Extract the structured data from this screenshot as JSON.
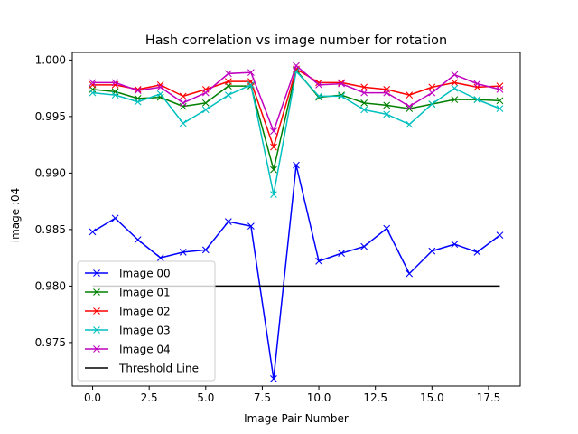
{
  "chart_data": {
    "type": "line",
    "title": "Hash correlation vs image number for rotation",
    "xlabel": "Image Pair Number",
    "ylabel": "image :04",
    "xlim": [
      -0.9,
      18.9
    ],
    "ylim": [
      0.97115,
      1.00067
    ],
    "xticks": [
      0.0,
      2.5,
      5.0,
      7.5,
      10.0,
      12.5,
      15.0,
      17.5
    ],
    "xtick_labels": [
      "0.0",
      "2.5",
      "5.0",
      "7.5",
      "10.0",
      "12.5",
      "15.0",
      "17.5"
    ],
    "yticks": [
      0.975,
      0.98,
      0.985,
      0.99,
      0.995,
      1.0
    ],
    "ytick_labels": [
      "0.975",
      "0.980",
      "0.985",
      "0.990",
      "0.995",
      "1.000"
    ],
    "grid": false,
    "legend_position": "lower-left",
    "x": [
      0,
      1,
      2,
      3,
      4,
      5,
      6,
      7,
      8,
      9,
      10,
      11,
      12,
      13,
      14,
      15,
      16,
      17,
      18
    ],
    "series": [
      {
        "name": "Image 00",
        "color": "#0000ff",
        "marker": "x",
        "values": [
          0.9848,
          0.986,
          0.9841,
          0.9825,
          0.983,
          0.9832,
          0.9857,
          0.9853,
          0.9718,
          0.9907,
          0.9822,
          0.9829,
          0.9835,
          0.9851,
          0.9811,
          0.9831,
          0.9837,
          0.983,
          0.9845
        ]
      },
      {
        "name": "Image 01",
        "color": "#008000",
        "marker": "x",
        "values": [
          0.9974,
          0.9972,
          0.9966,
          0.9967,
          0.9959,
          0.9962,
          0.9977,
          0.9977,
          0.9903,
          0.9991,
          0.9967,
          0.9969,
          0.9962,
          0.996,
          0.9957,
          0.9961,
          0.9965,
          0.9965,
          0.9964
        ]
      },
      {
        "name": "Image 02",
        "color": "#ff0000",
        "marker": "x",
        "values": [
          0.9978,
          0.9978,
          0.9974,
          0.9978,
          0.9968,
          0.9974,
          0.9981,
          0.9981,
          0.9923,
          0.9992,
          0.998,
          0.998,
          0.9976,
          0.9974,
          0.9969,
          0.9976,
          0.998,
          0.9976,
          0.9977
        ]
      },
      {
        "name": "Image 03",
        "color": "#00bfbf",
        "marker": "x",
        "values": [
          0.9971,
          0.9969,
          0.9963,
          0.997,
          0.9944,
          0.9956,
          0.9969,
          0.9978,
          0.9881,
          0.999,
          0.9968,
          0.9968,
          0.9956,
          0.9952,
          0.9943,
          0.9961,
          0.9975,
          0.9965,
          0.9957
        ]
      },
      {
        "name": "Image 04",
        "color": "#bf00bf",
        "marker": "x",
        "values": [
          0.998,
          0.998,
          0.9973,
          0.9976,
          0.9962,
          0.9971,
          0.9988,
          0.9989,
          0.9937,
          0.9995,
          0.9978,
          0.9979,
          0.9971,
          0.9971,
          0.9959,
          0.9971,
          0.9987,
          0.9979,
          0.9974
        ]
      },
      {
        "name": "Threshold Line",
        "color": "#000000",
        "marker": "none",
        "values": [
          0.98,
          0.98,
          0.98,
          0.98,
          0.98,
          0.98,
          0.98,
          0.98,
          0.98,
          0.98,
          0.98,
          0.98,
          0.98,
          0.98,
          0.98,
          0.98,
          0.98,
          0.98,
          0.98
        ]
      }
    ]
  }
}
